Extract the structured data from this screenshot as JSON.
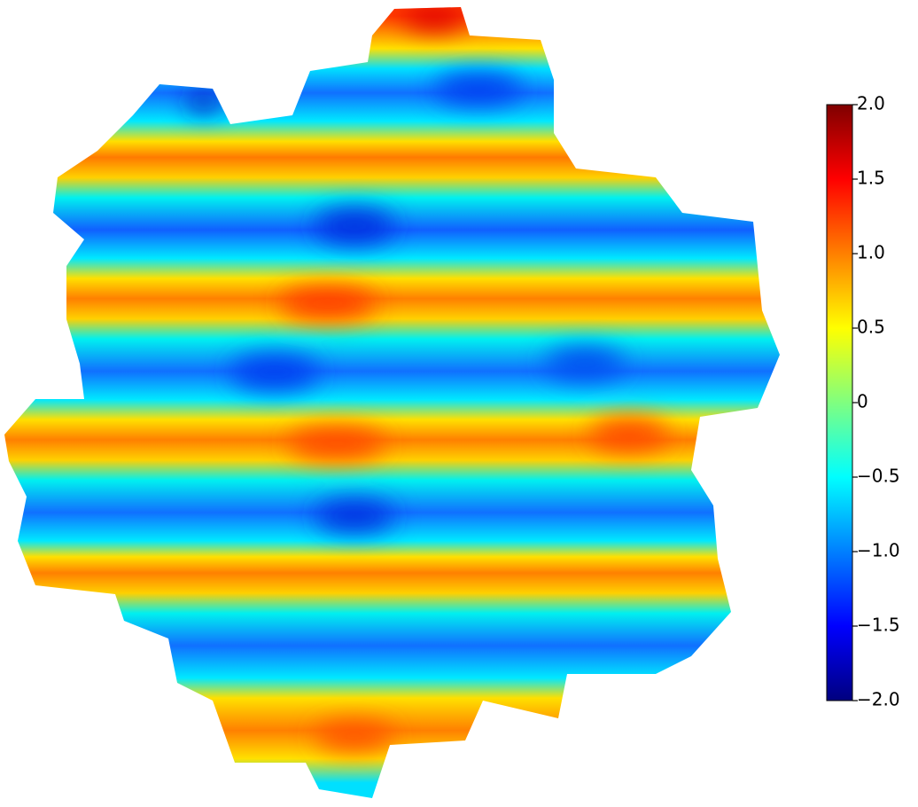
{
  "chart_data": {
    "type": "heatmap",
    "colormap": "jet",
    "clim": [
      -2,
      2
    ],
    "cticks": [
      {
        "value": 2.0,
        "label": "2.0"
      },
      {
        "value": 1.5,
        "label": "1.5"
      },
      {
        "value": 1.0,
        "label": "1.0"
      },
      {
        "value": 0.5,
        "label": "0.5"
      },
      0,
      {
        "value": -0.5,
        "label": "−0.5"
      },
      {
        "value": -1.0,
        "label": "−1.0"
      },
      {
        "value": -1.5,
        "label": "−1.5"
      },
      {
        "value": -2.0,
        "label": "−2.0"
      }
    ]
  }
}
